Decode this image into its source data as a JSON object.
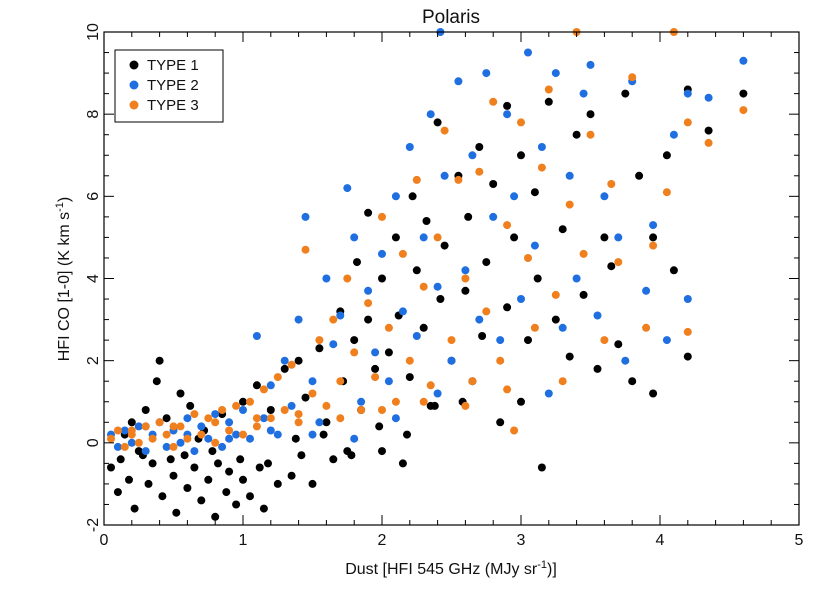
{
  "chart_data": {
    "type": "scatter",
    "title": "Polaris",
    "xlabel_main": "Dust [HFI 545 GHz (MJy sr",
    "xlabel_sup": "-1",
    "xlabel_end": ")]",
    "ylabel_main": "HFI CO [1-0] (K km s",
    "ylabel_sup": "-1",
    "ylabel_end": ")",
    "xlim": [
      0,
      5
    ],
    "ylim": [
      -2,
      10
    ],
    "xticks": [
      "0",
      "1",
      "2",
      "3",
      "4",
      "5"
    ],
    "yticks": [
      "-2",
      "0",
      "2",
      "4",
      "6",
      "8",
      "10"
    ],
    "grid": false,
    "legend_position": "top-left",
    "series": [
      {
        "name": "TYPE 1",
        "color": "#000000",
        "points": [
          [
            0.05,
            -0.6
          ],
          [
            0.1,
            -1.2
          ],
          [
            0.12,
            -0.4
          ],
          [
            0.18,
            -0.9
          ],
          [
            0.2,
            0.5
          ],
          [
            0.22,
            -1.6
          ],
          [
            0.25,
            -0.2
          ],
          [
            0.3,
            0.8
          ],
          [
            0.32,
            -1.0
          ],
          [
            0.35,
            -0.5
          ],
          [
            0.38,
            1.5
          ],
          [
            0.4,
            2.0
          ],
          [
            0.42,
            -1.3
          ],
          [
            0.45,
            0.6
          ],
          [
            0.5,
            -0.8
          ],
          [
            0.52,
            -1.7
          ],
          [
            0.55,
            1.2
          ],
          [
            0.58,
            -0.3
          ],
          [
            0.6,
            -1.1
          ],
          [
            0.62,
            0.9
          ],
          [
            0.65,
            -0.6
          ],
          [
            0.7,
            -1.4
          ],
          [
            0.72,
            0.3
          ],
          [
            0.75,
            -0.9
          ],
          [
            0.8,
            -1.8
          ],
          [
            0.82,
            -0.5
          ],
          [
            0.85,
            0.7
          ],
          [
            0.88,
            -1.2
          ],
          [
            0.9,
            -0.7
          ],
          [
            0.95,
            -1.5
          ],
          [
            1.0,
            1.0
          ],
          [
            1.0,
            -0.9
          ],
          [
            1.05,
            -1.3
          ],
          [
            1.1,
            1.4
          ],
          [
            1.12,
            -0.6
          ],
          [
            1.15,
            -1.6
          ],
          [
            1.2,
            0.8
          ],
          [
            1.25,
            -1.0
          ],
          [
            1.3,
            1.8
          ],
          [
            1.35,
            -0.8
          ],
          [
            1.4,
            2.0
          ],
          [
            1.42,
            -0.3
          ],
          [
            1.45,
            1.1
          ],
          [
            1.5,
            -1.0
          ],
          [
            1.55,
            2.3
          ],
          [
            1.6,
            0.5
          ],
          [
            1.65,
            -0.4
          ],
          [
            1.7,
            3.2
          ],
          [
            1.72,
            1.5
          ],
          [
            1.75,
            -0.2
          ],
          [
            1.8,
            2.5
          ],
          [
            1.82,
            4.4
          ],
          [
            1.85,
            0.8
          ],
          [
            1.9,
            5.6
          ],
          [
            1.9,
            3.0
          ],
          [
            1.95,
            1.8
          ],
          [
            2.0,
            -0.2
          ],
          [
            2.0,
            4.0
          ],
          [
            2.05,
            2.2
          ],
          [
            2.1,
            5.0
          ],
          [
            2.12,
            3.1
          ],
          [
            2.15,
            -0.5
          ],
          [
            2.2,
            1.6
          ],
          [
            2.22,
            6.0
          ],
          [
            2.25,
            4.2
          ],
          [
            2.3,
            2.8
          ],
          [
            2.32,
            5.4
          ],
          [
            2.35,
            0.9
          ],
          [
            2.4,
            7.8
          ],
          [
            2.42,
            3.5
          ],
          [
            2.45,
            4.8
          ],
          [
            2.5,
            2.0
          ],
          [
            2.55,
            6.5
          ],
          [
            2.6,
            3.7
          ],
          [
            2.62,
            5.5
          ],
          [
            2.65,
            1.5
          ],
          [
            2.7,
            7.2
          ],
          [
            2.72,
            2.6
          ],
          [
            2.75,
            4.4
          ],
          [
            2.8,
            6.3
          ],
          [
            2.85,
            0.5
          ],
          [
            2.9,
            8.2
          ],
          [
            2.9,
            3.3
          ],
          [
            2.95,
            5.0
          ],
          [
            3.0,
            1.0
          ],
          [
            3.0,
            7.0
          ],
          [
            3.05,
            2.5
          ],
          [
            3.1,
            6.1
          ],
          [
            3.12,
            4.0
          ],
          [
            3.15,
            -0.6
          ],
          [
            3.2,
            8.3
          ],
          [
            3.25,
            3.0
          ],
          [
            3.3,
            5.2
          ],
          [
            3.35,
            2.1
          ],
          [
            3.4,
            7.5
          ],
          [
            3.45,
            3.6
          ],
          [
            3.5,
            8.0
          ],
          [
            3.55,
            1.8
          ],
          [
            3.6,
            5.0
          ],
          [
            3.65,
            4.3
          ],
          [
            3.7,
            2.4
          ],
          [
            3.75,
            8.5
          ],
          [
            3.8,
            1.5
          ],
          [
            3.85,
            6.5
          ],
          [
            3.95,
            5.0
          ],
          [
            3.95,
            1.2
          ],
          [
            4.05,
            7.0
          ],
          [
            4.1,
            4.2
          ],
          [
            4.2,
            2.1
          ],
          [
            4.2,
            8.6
          ],
          [
            4.35,
            7.6
          ],
          [
            4.6,
            8.5
          ],
          [
            0.15,
            0.2
          ],
          [
            0.28,
            -0.3
          ],
          [
            0.48,
            -0.4
          ],
          [
            0.68,
            0.1
          ],
          [
            0.78,
            -0.2
          ],
          [
            0.98,
            -0.4
          ],
          [
            1.18,
            -0.5
          ],
          [
            1.38,
            0.1
          ],
          [
            1.58,
            0.2
          ],
          [
            1.78,
            -0.3
          ],
          [
            1.98,
            0.4
          ],
          [
            2.18,
            0.2
          ],
          [
            2.38,
            0.9
          ],
          [
            2.58,
            1.0
          ]
        ]
      },
      {
        "name": "TYPE 2",
        "color": "#1f6fe0",
        "points": [
          [
            0.05,
            0.2
          ],
          [
            0.1,
            -0.1
          ],
          [
            0.15,
            0.3
          ],
          [
            0.2,
            0.0
          ],
          [
            0.25,
            0.4
          ],
          [
            0.3,
            -0.2
          ],
          [
            0.35,
            0.2
          ],
          [
            0.4,
            0.5
          ],
          [
            0.45,
            -0.1
          ],
          [
            0.5,
            0.3
          ],
          [
            0.55,
            0.0
          ],
          [
            0.6,
            0.6
          ],
          [
            0.65,
            -0.2
          ],
          [
            0.7,
            0.4
          ],
          [
            0.75,
            0.1
          ],
          [
            0.8,
            0.7
          ],
          [
            0.85,
            -0.1
          ],
          [
            0.9,
            0.5
          ],
          [
            0.95,
            0.2
          ],
          [
            1.0,
            0.8
          ],
          [
            1.05,
            0.1
          ],
          [
            1.1,
            2.6
          ],
          [
            1.15,
            0.6
          ],
          [
            1.2,
            1.4
          ],
          [
            1.25,
            0.2
          ],
          [
            1.3,
            2.0
          ],
          [
            1.35,
            0.9
          ],
          [
            1.4,
            3.0
          ],
          [
            1.45,
            5.5
          ],
          [
            1.5,
            1.5
          ],
          [
            1.55,
            0.5
          ],
          [
            1.6,
            4.0
          ],
          [
            1.65,
            2.4
          ],
          [
            1.7,
            3.1
          ],
          [
            1.75,
            6.2
          ],
          [
            1.8,
            5.0
          ],
          [
            1.85,
            1.0
          ],
          [
            1.9,
            3.7
          ],
          [
            1.95,
            2.2
          ],
          [
            2.0,
            4.6
          ],
          [
            2.05,
            1.5
          ],
          [
            2.1,
            6.0
          ],
          [
            2.15,
            3.2
          ],
          [
            2.2,
            7.2
          ],
          [
            2.25,
            2.6
          ],
          [
            2.3,
            5.0
          ],
          [
            2.35,
            8.0
          ],
          [
            2.4,
            3.8
          ],
          [
            2.45,
            6.5
          ],
          [
            2.5,
            2.0
          ],
          [
            2.55,
            8.8
          ],
          [
            2.6,
            4.2
          ],
          [
            2.65,
            7.0
          ],
          [
            2.7,
            3.0
          ],
          [
            2.75,
            9.0
          ],
          [
            2.8,
            5.5
          ],
          [
            2.85,
            2.5
          ],
          [
            2.9,
            8.0
          ],
          [
            2.95,
            6.0
          ],
          [
            3.0,
            3.5
          ],
          [
            3.05,
            9.5
          ],
          [
            3.1,
            4.8
          ],
          [
            3.15,
            7.2
          ],
          [
            3.2,
            1.2
          ],
          [
            3.25,
            9.0
          ],
          [
            3.3,
            2.8
          ],
          [
            3.35,
            6.5
          ],
          [
            3.4,
            4.0
          ],
          [
            3.45,
            8.5
          ],
          [
            3.5,
            9.2
          ],
          [
            3.55,
            3.1
          ],
          [
            3.6,
            6.0
          ],
          [
            3.7,
            5.0
          ],
          [
            3.75,
            2.0
          ],
          [
            3.8,
            8.8
          ],
          [
            3.9,
            3.7
          ],
          [
            3.95,
            5.3
          ],
          [
            4.05,
            2.5
          ],
          [
            4.1,
            7.5
          ],
          [
            4.2,
            3.5
          ],
          [
            4.2,
            8.5
          ],
          [
            4.35,
            8.4
          ],
          [
            4.6,
            9.3
          ],
          [
            2.42,
            10.0
          ],
          [
            0.3,
            0.4
          ],
          [
            0.6,
            0.2
          ],
          [
            0.9,
            0.1
          ],
          [
            1.2,
            0.3
          ],
          [
            1.5,
            0.2
          ],
          [
            1.8,
            0.1
          ],
          [
            2.1,
            0.6
          ],
          [
            2.4,
            1.2
          ]
        ]
      },
      {
        "name": "TYPE 3",
        "color": "#f07f1e",
        "points": [
          [
            0.05,
            0.1
          ],
          [
            0.1,
            0.3
          ],
          [
            0.15,
            -0.1
          ],
          [
            0.2,
            0.2
          ],
          [
            0.25,
            0.0
          ],
          [
            0.3,
            0.4
          ],
          [
            0.35,
            0.1
          ],
          [
            0.4,
            0.5
          ],
          [
            0.45,
            0.2
          ],
          [
            0.5,
            -0.1
          ],
          [
            0.55,
            0.4
          ],
          [
            0.6,
            0.1
          ],
          [
            0.65,
            0.7
          ],
          [
            0.7,
            0.2
          ],
          [
            0.75,
            0.6
          ],
          [
            0.8,
            0.0
          ],
          [
            0.85,
            0.8
          ],
          [
            0.9,
            0.3
          ],
          [
            0.95,
            0.9
          ],
          [
            1.0,
            0.2
          ],
          [
            1.05,
            1.0
          ],
          [
            1.1,
            0.4
          ],
          [
            1.15,
            1.3
          ],
          [
            1.2,
            0.6
          ],
          [
            1.25,
            1.6
          ],
          [
            1.3,
            0.8
          ],
          [
            1.35,
            1.9
          ],
          [
            1.4,
            0.5
          ],
          [
            1.45,
            4.7
          ],
          [
            1.5,
            1.2
          ],
          [
            1.55,
            2.5
          ],
          [
            1.6,
            0.9
          ],
          [
            1.65,
            3.0
          ],
          [
            1.7,
            1.5
          ],
          [
            1.75,
            4.0
          ],
          [
            1.8,
            2.2
          ],
          [
            1.85,
            0.8
          ],
          [
            1.9,
            3.4
          ],
          [
            1.95,
            1.6
          ],
          [
            2.0,
            5.5
          ],
          [
            2.05,
            2.8
          ],
          [
            2.1,
            1.0
          ],
          [
            2.15,
            4.6
          ],
          [
            2.2,
            2.0
          ],
          [
            2.25,
            6.4
          ],
          [
            2.3,
            3.8
          ],
          [
            2.35,
            1.4
          ],
          [
            2.4,
            5.0
          ],
          [
            2.45,
            7.6
          ],
          [
            2.5,
            2.5
          ],
          [
            2.55,
            6.4
          ],
          [
            2.6,
            4.0
          ],
          [
            2.65,
            1.5
          ],
          [
            2.7,
            6.6
          ],
          [
            2.75,
            3.2
          ],
          [
            2.8,
            8.3
          ],
          [
            2.85,
            2.0
          ],
          [
            2.9,
            5.3
          ],
          [
            2.95,
            0.3
          ],
          [
            3.0,
            7.8
          ],
          [
            3.05,
            4.5
          ],
          [
            3.1,
            2.8
          ],
          [
            3.15,
            6.7
          ],
          [
            3.2,
            8.6
          ],
          [
            3.25,
            3.6
          ],
          [
            3.3,
            1.5
          ],
          [
            3.35,
            5.8
          ],
          [
            3.4,
            10.0
          ],
          [
            3.45,
            4.6
          ],
          [
            3.5,
            7.5
          ],
          [
            3.6,
            2.5
          ],
          [
            3.65,
            6.3
          ],
          [
            3.7,
            4.4
          ],
          [
            3.8,
            8.9
          ],
          [
            3.9,
            2.8
          ],
          [
            3.95,
            4.8
          ],
          [
            4.05,
            6.1
          ],
          [
            4.1,
            10.0
          ],
          [
            4.2,
            7.8
          ],
          [
            4.2,
            2.7
          ],
          [
            4.35,
            7.3
          ],
          [
            4.6,
            8.1
          ],
          [
            0.2,
            0.3
          ],
          [
            0.5,
            0.4
          ],
          [
            0.8,
            0.5
          ],
          [
            1.1,
            0.6
          ],
          [
            1.4,
            0.7
          ],
          [
            1.7,
            0.6
          ],
          [
            2.0,
            0.8
          ],
          [
            2.3,
            1.0
          ],
          [
            2.6,
            0.9
          ],
          [
            2.9,
            1.3
          ]
        ]
      }
    ]
  }
}
